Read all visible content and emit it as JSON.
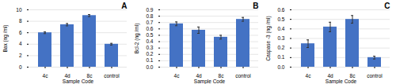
{
  "chart_data": [
    {
      "type": "bar",
      "title": "A",
      "xlabel": "Sample Code",
      "ylabel": "Bax (ng /ml)",
      "categories": [
        "4c",
        "4d",
        "8c",
        "control"
      ],
      "values": [
        6.0,
        7.4,
        9.0,
        4.0
      ],
      "errors": [
        0.15,
        0.2,
        0.18,
        0.15
      ],
      "ylim": [
        0,
        10
      ],
      "yticks": [
        0,
        2,
        4,
        6,
        8,
        10
      ],
      "grid": true,
      "color": "#4472C4"
    },
    {
      "type": "bar",
      "title": "B",
      "xlabel": "Sample Code",
      "ylabel": "Bcl-2 (ng /ml)",
      "categories": [
        "4c",
        "4d",
        "8c",
        "control"
      ],
      "values": [
        0.68,
        0.58,
        0.47,
        0.75
      ],
      "errors": [
        0.03,
        0.05,
        0.03,
        0.03
      ],
      "ylim": [
        0,
        0.9
      ],
      "yticks": [
        {
          "value": 0,
          "label": "0.0"
        },
        0.1,
        0.2,
        0.3,
        0.4,
        0.5,
        0.6,
        0.7,
        0.8,
        0.9
      ],
      "grid": true,
      "color": "#4472C4"
    },
    {
      "type": "bar",
      "title": "C",
      "xlabel": "Sample Code",
      "ylabel": "Caspase -3 (ng /ml)",
      "categories": [
        "4c",
        "4d",
        "8c",
        "control"
      ],
      "values": [
        0.245,
        0.42,
        0.5,
        0.1
      ],
      "errors": [
        0.04,
        0.05,
        0.04,
        0.015
      ],
      "ylim": [
        0,
        0.6
      ],
      "yticks": [
        {
          "value": 0,
          "label": "0.0"
        },
        0.1,
        0.2,
        0.3,
        0.4,
        0.5,
        0.6
      ],
      "grid": true,
      "color": "#4472C4"
    }
  ]
}
